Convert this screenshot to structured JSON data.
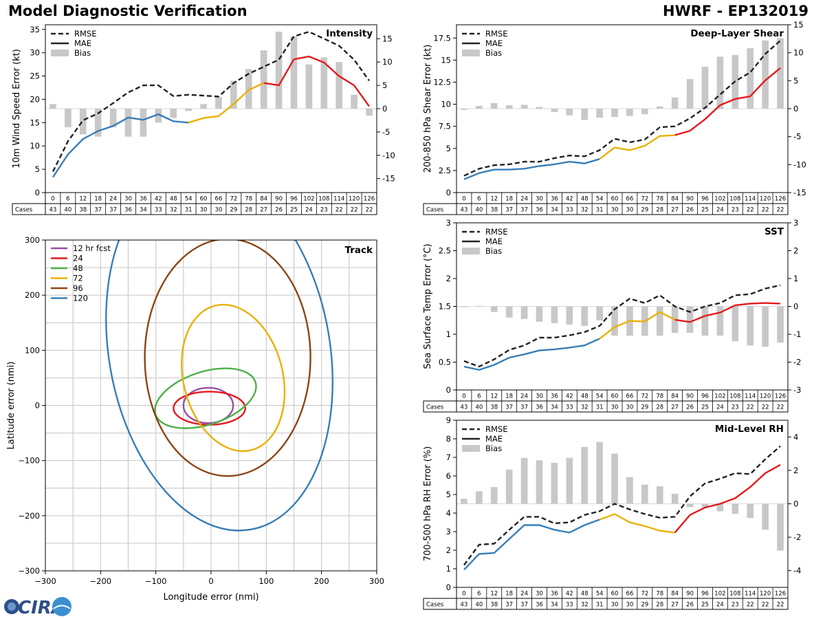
{
  "header": {
    "title": "Model Diagnostic Verification",
    "model": "HWRF - EP132019"
  },
  "logo": {
    "text": "CIRA"
  },
  "chart_data": [
    {
      "type": "line",
      "id": "intensity",
      "title": "Intensity",
      "ylabel": "10m Wind Speed Error (kt)",
      "ylim": [
        0,
        36
      ],
      "yticks": [
        0,
        5,
        10,
        15,
        20,
        25,
        30,
        35
      ],
      "y2lim": [
        -18,
        18
      ],
      "y2ticks": [
        -15,
        -10,
        -5,
        0,
        5,
        10,
        15
      ],
      "hours": [
        0,
        6,
        12,
        18,
        24,
        30,
        36,
        42,
        48,
        54,
        60,
        66,
        72,
        78,
        84,
        90,
        96,
        102,
        108,
        114,
        120,
        126
      ],
      "cases_label": "Cases",
      "cases": [
        43,
        40,
        38,
        37,
        37,
        36,
        34,
        33,
        32,
        31,
        30,
        30,
        29,
        28,
        27,
        26,
        25,
        24,
        23,
        22,
        22,
        22
      ],
      "rmse": [
        4.5,
        11,
        15.5,
        17,
        19.2,
        21.5,
        23,
        23,
        20.7,
        21,
        20.8,
        20.6,
        23.5,
        25.5,
        27,
        28.5,
        33.5,
        34.5,
        33,
        31.5,
        28.5,
        24
      ],
      "mae": [
        3.3,
        8.2,
        11.5,
        13.2,
        14.3,
        16.1,
        15.6,
        16.8,
        15.3,
        15,
        16,
        16.4,
        19,
        22,
        23.5,
        23,
        28.6,
        29.2,
        27.9,
        25,
        23,
        18.5
      ],
      "bias": [
        1,
        -4,
        -5.5,
        -6,
        -4,
        -6,
        -6,
        -3,
        -2,
        -0.5,
        1,
        2.5,
        6,
        8.5,
        12.5,
        16.5,
        15.5,
        9.5,
        11,
        10,
        3,
        -1.5
      ],
      "legend": [
        "RMSE",
        "MAE",
        "Bias"
      ]
    },
    {
      "type": "line",
      "id": "shear",
      "title": "Deep-Layer Shear",
      "ylabel": "200-850 hPa Shear Error (kt)",
      "ylim": [
        0,
        19
      ],
      "yticks": [
        0,
        2.5,
        5,
        7.5,
        10,
        12.5,
        15,
        17.5
      ],
      "y2lim": [
        -15,
        15
      ],
      "y2ticks": [
        -15,
        -10,
        -5,
        0,
        5,
        10,
        15
      ],
      "hours": [
        0,
        6,
        12,
        18,
        24,
        30,
        36,
        42,
        48,
        54,
        60,
        66,
        72,
        78,
        84,
        90,
        96,
        102,
        108,
        114,
        120,
        126
      ],
      "cases_label": "Cases",
      "cases": [
        43,
        40,
        38,
        37,
        37,
        36,
        34,
        33,
        32,
        31,
        30,
        30,
        29,
        28,
        27,
        26,
        25,
        24,
        23,
        22,
        22,
        22
      ],
      "rmse": [
        1.9,
        2.7,
        3.1,
        3.2,
        3.5,
        3.5,
        3.9,
        4.2,
        4.1,
        4.8,
        6.1,
        5.7,
        6,
        7.4,
        7.5,
        8.4,
        9.6,
        11.1,
        12.6,
        13.6,
        15.7,
        17.2
      ],
      "mae": [
        1.5,
        2.2,
        2.6,
        2.6,
        2.7,
        3,
        3.2,
        3.5,
        3.3,
        3.8,
        5.1,
        4.8,
        5.3,
        6.4,
        6.5,
        7,
        8.3,
        9.9,
        10.6,
        10.9,
        12.7,
        14.1
      ],
      "bias": [
        -0.2,
        0.5,
        1,
        0.6,
        0.7,
        0.3,
        -0.6,
        -1.2,
        -2,
        -1.6,
        -1.5,
        -1.3,
        -1,
        0.4,
        2,
        5.3,
        7.5,
        9.3,
        9.6,
        10.8,
        12.2,
        12.6
      ],
      "legend": [
        "RMSE",
        "MAE",
        "Bias"
      ]
    },
    {
      "type": "line",
      "id": "sst",
      "title": "SST",
      "ylabel": "Sea Surface Temp Error (°C)",
      "ylim": [
        0,
        3
      ],
      "yticks": [
        0,
        0.5,
        1,
        1.5,
        2,
        2.5,
        3
      ],
      "y2lim": [
        -3,
        3
      ],
      "y2ticks": [
        -3,
        -2,
        -1,
        0,
        1,
        2,
        3
      ],
      "hours": [
        0,
        6,
        12,
        18,
        24,
        30,
        36,
        42,
        48,
        54,
        60,
        66,
        72,
        78,
        84,
        90,
        96,
        102,
        108,
        114,
        120,
        126
      ],
      "cases_label": "Cases",
      "cases": [
        43,
        40,
        38,
        37,
        37,
        36,
        34,
        33,
        32,
        31,
        30,
        30,
        29,
        28,
        27,
        26,
        25,
        24,
        23,
        22,
        22,
        22
      ],
      "rmse": [
        0.52,
        0.42,
        0.55,
        0.72,
        0.8,
        0.94,
        0.94,
        0.98,
        1.04,
        1.15,
        1.45,
        1.64,
        1.56,
        1.7,
        1.5,
        1.4,
        1.5,
        1.56,
        1.7,
        1.72,
        1.82,
        1.88
      ],
      "mae": [
        0.42,
        0.36,
        0.45,
        0.58,
        0.64,
        0.71,
        0.73,
        0.76,
        0.8,
        0.92,
        1.13,
        1.24,
        1.23,
        1.4,
        1.26,
        1.22,
        1.33,
        1.39,
        1.52,
        1.55,
        1.56,
        1.55
      ],
      "bias": [
        0,
        0.02,
        -0.2,
        -0.4,
        -0.45,
        -0.55,
        -0.6,
        -0.65,
        -0.7,
        -0.5,
        -1.05,
        -1.05,
        -1.05,
        -1.05,
        -0.95,
        -0.95,
        -1.05,
        -1.05,
        -1.25,
        -1.4,
        -1.45,
        -1.3
      ],
      "legend": [
        "RMSE",
        "MAE",
        "Bias"
      ]
    },
    {
      "type": "line",
      "id": "rh",
      "title": "Mid-Level RH",
      "ylabel": "700-500 hPa RH Error (%)",
      "ylim": [
        0,
        9
      ],
      "yticks": [
        0,
        1,
        2,
        3,
        4,
        5,
        6,
        7,
        8,
        9
      ],
      "y2lim": [
        -5,
        5
      ],
      "y2ticks": [
        -4,
        -2,
        0,
        2,
        4
      ],
      "hours": [
        0,
        6,
        12,
        18,
        24,
        30,
        36,
        42,
        48,
        54,
        60,
        66,
        72,
        78,
        84,
        90,
        96,
        102,
        108,
        114,
        120,
        126
      ],
      "cases_label": "Cases",
      "cases": [
        43,
        40,
        38,
        37,
        37,
        36,
        34,
        33,
        32,
        31,
        30,
        30,
        29,
        28,
        27,
        26,
        25,
        24,
        23,
        22,
        22,
        22
      ],
      "rmse": [
        1.2,
        2.3,
        2.35,
        3.1,
        3.8,
        3.8,
        3.45,
        3.5,
        3.9,
        4.1,
        4.5,
        4.2,
        3.95,
        3.75,
        3.8,
        4.9,
        5.6,
        5.85,
        6.15,
        6.1,
        6.9,
        7.6
      ],
      "mae": [
        0.95,
        1.8,
        1.85,
        2.6,
        3.35,
        3.35,
        3.1,
        2.95,
        3.35,
        3.65,
        3.95,
        3.5,
        3.3,
        3.05,
        2.95,
        3.9,
        4.3,
        4.5,
        4.8,
        5.4,
        6.15,
        6.6
      ],
      "bias": [
        0.3,
        0.75,
        1,
        2.05,
        2.75,
        2.6,
        2.45,
        2.75,
        3.4,
        3.7,
        3,
        1.6,
        1.15,
        1.05,
        0.6,
        -0.2,
        -0.2,
        -0.45,
        -0.6,
        -0.85,
        -1.55,
        -2.8
      ],
      "legend": [
        "RMSE",
        "MAE",
        "Bias"
      ]
    },
    {
      "type": "scatter",
      "id": "track",
      "title": "Track",
      "xlabel": "Longitude error (nmi)",
      "ylabel": "Latitude error (nmi)",
      "xlim": [
        -300,
        300
      ],
      "ylim": [
        -300,
        300
      ],
      "xticks": [
        -300,
        -200,
        -100,
        0,
        100,
        200,
        300
      ],
      "yticks": [
        -300,
        -200,
        -100,
        0,
        100,
        200,
        300
      ],
      "ellipses": [
        {
          "name": "12 hr fcst",
          "color": "#984ea3",
          "cx": -5,
          "cy": 0,
          "rx": 45,
          "ry": 32,
          "rot": 0
        },
        {
          "name": "24",
          "color": "#e41a1c",
          "cx": -3,
          "cy": -5,
          "rx": 65,
          "ry": 30,
          "rot": 0
        },
        {
          "name": "48",
          "color": "#4daf4a",
          "cx": -10,
          "cy": 13,
          "rx": 95,
          "ry": 48,
          "rot": -18
        },
        {
          "name": "72",
          "color": "#e8b100",
          "cx": 40,
          "cy": 50,
          "rx": 90,
          "ry": 135,
          "rot": -14
        },
        {
          "name": "96",
          "color": "#8b4513",
          "cx": 30,
          "cy": 87,
          "rx": 150,
          "ry": 215,
          "rot": 0
        },
        {
          "name": "120",
          "color": "#377eb8",
          "cx": 15,
          "cy": 100,
          "rx": 200,
          "ry": 330,
          "rot": -10
        }
      ]
    }
  ]
}
